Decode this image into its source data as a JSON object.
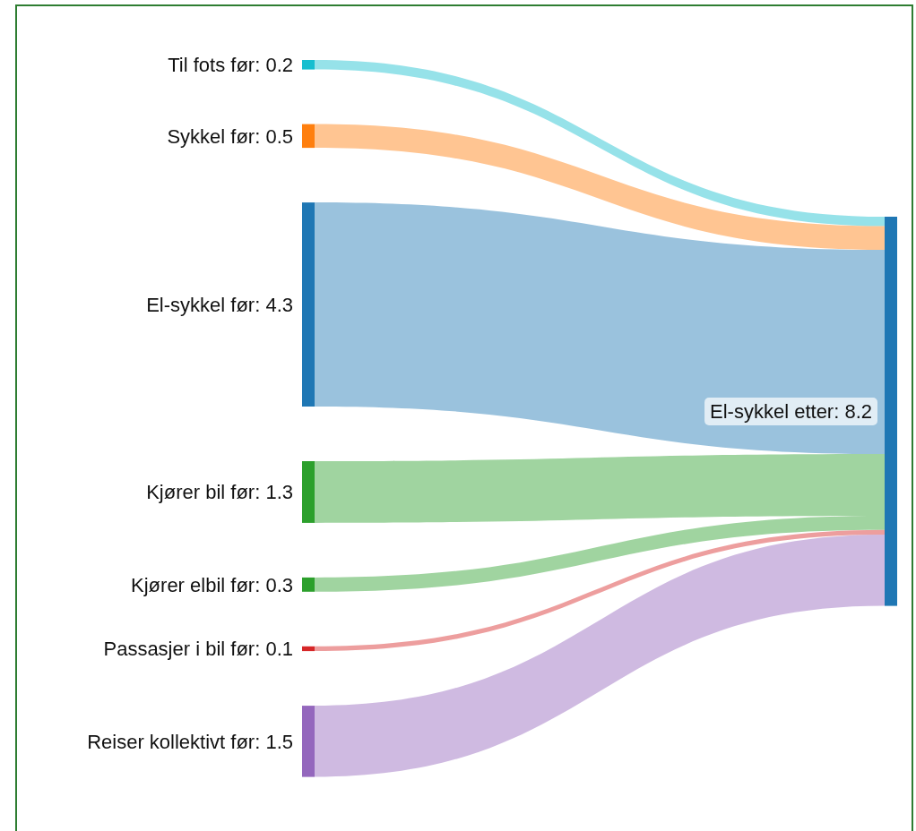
{
  "chart_data": {
    "type": "other",
    "categories": [
      "Til fots før",
      "Sykkel før",
      "El-sykkel før",
      "Kjører bil før",
      "Kjører elbil før",
      "Passasjer i bil før",
      "Reiser kollektivt før"
    ],
    "value_labels": [
      ": 0.2",
      ": 0.5",
      ": 4.3",
      ": 1.3",
      ": 0.3",
      ": 0.1",
      ": 1.5"
    ],
    "values": [
      0.2,
      0.5,
      4.3,
      1.3,
      0.3,
      0.1,
      1.5
    ],
    "colors": [
      "#17becf",
      "#ff7f0e",
      "#1f77b4",
      "#2ca02c",
      "#2ca02c",
      "#d62728",
      "#9467bd"
    ],
    "annotations": [
      "El-sykkel etter: 8.2"
    ]
  }
}
